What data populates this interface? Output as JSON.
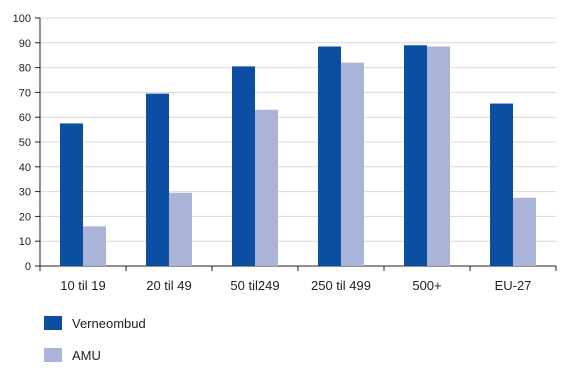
{
  "colors": {
    "background": "#ffffff",
    "grid": "#d9d9d9",
    "axis": "#222222",
    "series": [
      "#0b4ea2",
      "#aab4d8"
    ]
  },
  "chart_data": {
    "type": "bar",
    "categories": [
      "10 til 19",
      "20 til 49",
      "50 til249",
      "250 til 499",
      "500+",
      "EU-27"
    ],
    "series": [
      {
        "name": "Verneombud",
        "values": [
          57.5,
          69.5,
          80.5,
          88.5,
          89,
          65.5
        ]
      },
      {
        "name": "AMU",
        "values": [
          16,
          29.5,
          63,
          82,
          88.5,
          27.5
        ]
      }
    ],
    "ylim": [
      0,
      100
    ],
    "yticks": [
      0,
      10,
      20,
      30,
      40,
      50,
      60,
      70,
      80,
      90,
      100
    ],
    "grid": true,
    "legend_position": "bottom-left",
    "title": "",
    "xlabel": "",
    "ylabel": ""
  }
}
